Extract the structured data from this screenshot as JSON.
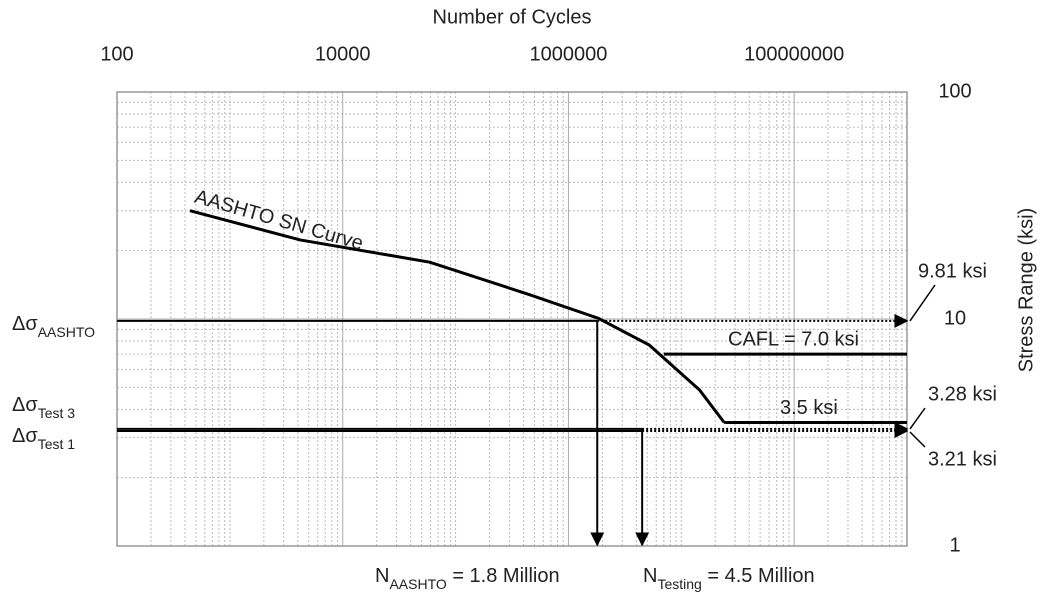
{
  "chart_data": {
    "type": "line",
    "x_label": "Number of Cycles",
    "y_label": "Stress Range (ksi)",
    "log_x": true,
    "log_y": true,
    "xlim": [
      100,
      1000000000
    ],
    "ylim": [
      1,
      100
    ],
    "xticks": [
      100,
      10000,
      1000000,
      100000000
    ],
    "yticks": [
      1,
      10,
      100
    ],
    "grid": true,
    "series": [
      {
        "name": "AASHTO SN Curve",
        "color": "#000000",
        "x": [
          443,
          4200,
          59000,
          452000,
          1860000,
          5200000,
          14500000,
          24000000
        ],
        "values": [
          30,
          22.3,
          17.8,
          12.8,
          10.05,
          7.68,
          4.87,
          3.5
        ]
      }
    ],
    "stress_lines": [
      {
        "symbol": "Δσ",
        "sub": "AASHTO",
        "value": 9.81,
        "label": "9.81 ksi",
        "x_end": 1800000
      },
      {
        "symbol": "Δσ",
        "sub": "Test 3",
        "value": 3.28,
        "label": "3.28 ksi",
        "x_end": 4500000
      },
      {
        "symbol": "Δσ",
        "sub": "Test 1",
        "value": 3.21,
        "label": "3.21 ksi",
        "x_end": 4500000
      }
    ],
    "limit_lines": [
      {
        "label": "CAFL = 7.0 ksi",
        "value": 7.0,
        "x_start": 7000000
      },
      {
        "label": "3.5 ksi",
        "value": 3.5,
        "x_start": 24000000
      }
    ],
    "cycle_lines": [
      {
        "symbol": "N",
        "sub": "AASHTO",
        "rest": " = 1.8 Million",
        "value": 1800000,
        "y_start": 9.81
      },
      {
        "symbol": "N",
        "sub": "Testing",
        "rest": " = 4.5 Million",
        "value": 4500000,
        "y_start": 3.28
      }
    ]
  }
}
